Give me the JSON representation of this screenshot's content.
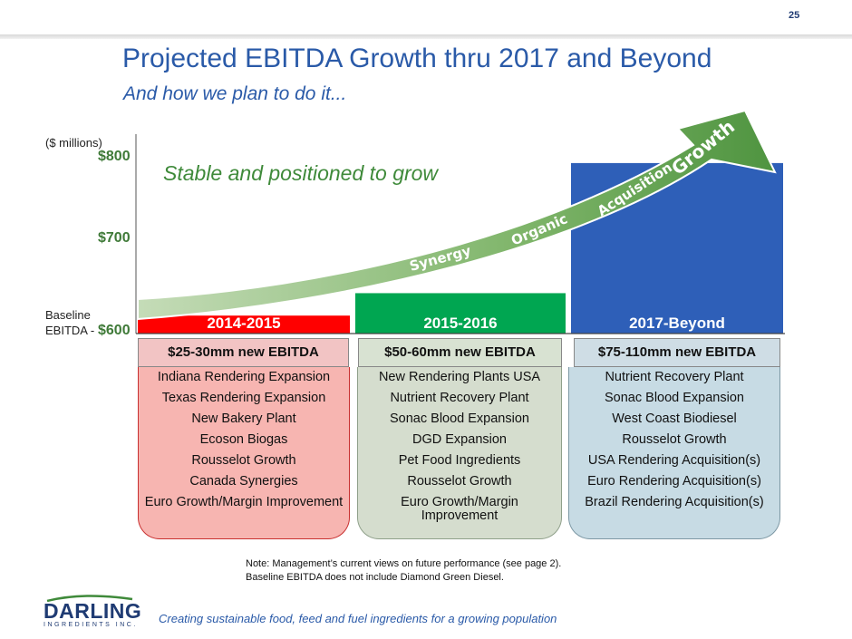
{
  "slide": {
    "page_number": "25",
    "title": "Projected EBITDA Growth thru 2017 and Beyond",
    "subtitle": "And how we plan to do it...",
    "stable_text": "Stable and positioned to grow",
    "baseline_label_line1": "Baseline",
    "baseline_label_line2": "EBITDA -",
    "note_line1": "Note:  Management’s current views on future performance (see page 2).",
    "note_line2": "Baseline EBITDA does not include Diamond Green Diesel.",
    "logo_word": "DARLING",
    "logo_sub": "INGREDIENTS INC.",
    "tagline": "Creating sustainable food, feed and fuel ingredients for a growing population"
  },
  "chart_data": {
    "type": "bar",
    "ylabel": "($ millions)",
    "ylim": [
      600,
      800
    ],
    "yticks": [
      "$800",
      "$700",
      "$600"
    ],
    "ytick_values": [
      800,
      700,
      600
    ],
    "categories": [
      "2014-2015",
      "2015-2016",
      "2017-Beyond"
    ],
    "values": [
      620,
      645,
      790
    ],
    "colors": [
      "#ff0000",
      "#00a651",
      "#2e5fb8"
    ],
    "arrow_labels": [
      "Synergy",
      "Organic",
      "Acquisition",
      "Growth"
    ],
    "new_ebitda": [
      "$25-30mm new EBITDA",
      "$50-60mm new EBITDA",
      "$75-110mm new EBITDA"
    ],
    "initiatives": [
      [
        "Indiana Rendering Expansion",
        "Texas Rendering Expansion",
        "New Bakery Plant",
        "Ecoson Biogas",
        "Rousselot Growth",
        "Canada Synergies",
        "Euro Growth/Margin Improvement"
      ],
      [
        "New Rendering Plants USA",
        "Nutrient Recovery Plant",
        "Sonac Blood Expansion",
        "DGD Expansion",
        "Pet Food Ingredients",
        "Rousselot Growth",
        "Euro Growth/Margin Improvement"
      ],
      [
        "Nutrient Recovery Plant",
        "Sonac Blood Expansion",
        "West Coast Biodiesel",
        "Rousselot Growth",
        "USA Rendering Acquisition(s)",
        "Euro Rendering Acquisition(s)",
        "Brazil Rendering Acquisition(s)"
      ]
    ]
  }
}
